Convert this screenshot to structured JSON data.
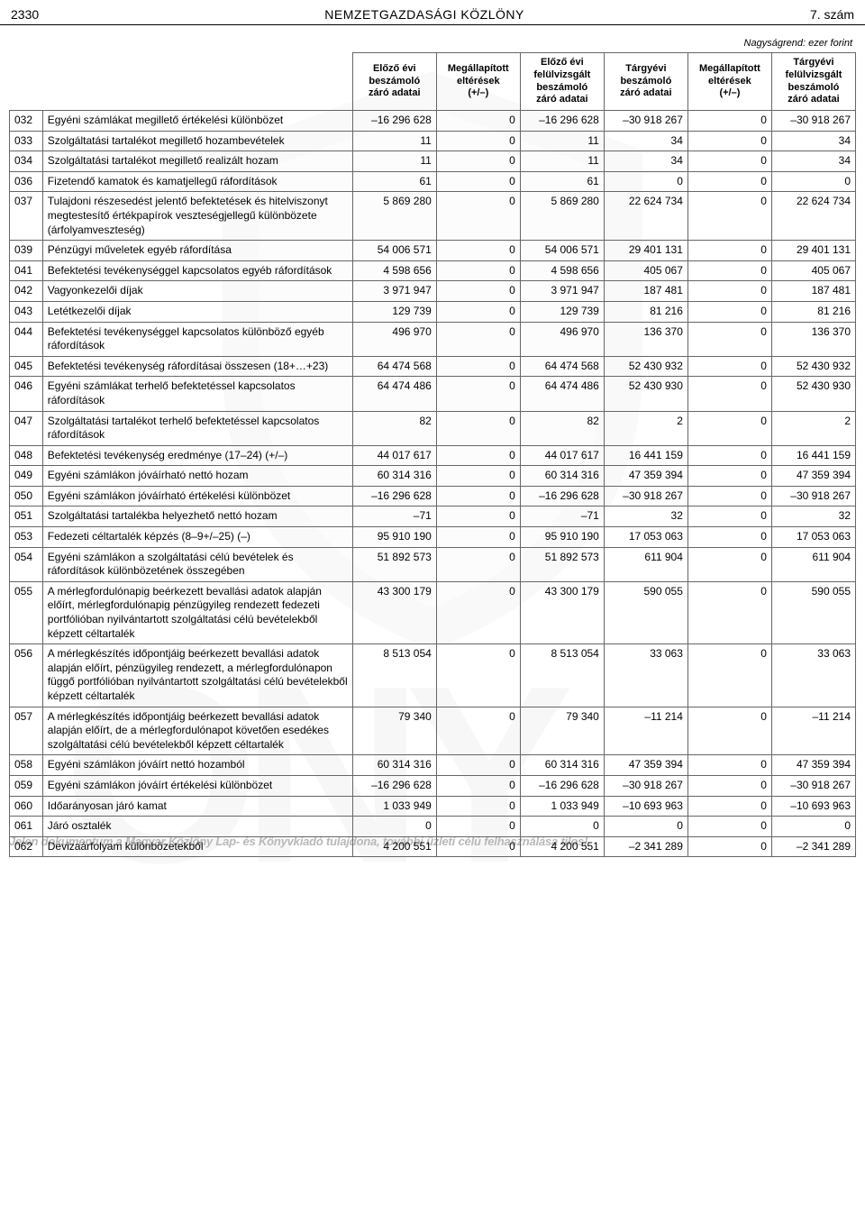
{
  "header": {
    "page_number": "2330",
    "title": "NEMZETGAZDASÁGI KÖZLÖNY",
    "issue": "7. szám"
  },
  "unit_note": "Nagyságrend: ezer forint",
  "columns": [
    "Előző évi\nbeszámoló\nzáró adatai",
    "Megállapított\neltérések\n(+/–)",
    "Előző évi\nfelülvizsgált\nbeszámoló\nzáró adatai",
    "Tárgyévi\nbeszámoló\nzáró adatai",
    "Megállapított\neltérések\n(+/–)",
    "Tárgyévi\nfelülvizsgált\nbeszámoló\nzáró adatai"
  ],
  "rows": [
    {
      "code": "032",
      "desc": "Egyéni számlákat megillető értékelési különbözet",
      "v": [
        "–16 296 628",
        "0",
        "–16 296 628",
        "–30 918 267",
        "0",
        "–30 918 267"
      ]
    },
    {
      "code": "033",
      "desc": "Szolgáltatási tartalékot megillető hozambevételek",
      "v": [
        "11",
        "0",
        "11",
        "34",
        "0",
        "34"
      ]
    },
    {
      "code": "034",
      "desc": "Szolgáltatási tartalékot megillető realizált hozam",
      "v": [
        "11",
        "0",
        "11",
        "34",
        "0",
        "34"
      ]
    },
    {
      "code": "036",
      "desc": "Fizetendő kamatok és kamatjellegű ráfordítások",
      "v": [
        "61",
        "0",
        "61",
        "0",
        "0",
        "0"
      ]
    },
    {
      "code": "037",
      "desc": "Tulajdoni részesedést jelentő befektetések és hitelviszonyt megtestesítő értékpapírok veszteségjellegű különbözete (árfolyamveszteség)",
      "v": [
        "5 869 280",
        "0",
        "5 869 280",
        "22 624 734",
        "0",
        "22 624 734"
      ]
    },
    {
      "code": "039",
      "desc": "Pénzügyi műveletek egyéb ráfordítása",
      "v": [
        "54 006 571",
        "0",
        "54 006 571",
        "29 401 131",
        "0",
        "29 401 131"
      ]
    },
    {
      "code": "041",
      "desc": "Befektetési tevékenységgel kapcsolatos egyéb ráfordítások",
      "v": [
        "4 598 656",
        "0",
        "4 598 656",
        "405 067",
        "0",
        "405 067"
      ]
    },
    {
      "code": "042",
      "desc": "Vagyonkezelői díjak",
      "v": [
        "3 971 947",
        "0",
        "3 971 947",
        "187 481",
        "0",
        "187 481"
      ]
    },
    {
      "code": "043",
      "desc": "Letétkezelői díjak",
      "v": [
        "129 739",
        "0",
        "129 739",
        "81 216",
        "0",
        "81 216"
      ]
    },
    {
      "code": "044",
      "desc": "Befektetési tevékenységgel kapcsolatos különböző egyéb ráfordítások",
      "v": [
        "496 970",
        "0",
        "496 970",
        "136 370",
        "0",
        "136 370"
      ]
    },
    {
      "code": "045",
      "desc": "Befektetési tevékenység ráfordításai összesen (18+…+23)",
      "v": [
        "64 474 568",
        "0",
        "64 474 568",
        "52 430 932",
        "0",
        "52 430 932"
      ]
    },
    {
      "code": "046",
      "desc": "Egyéni számlákat terhelő befektetéssel kapcsolatos ráfordítások",
      "v": [
        "64 474 486",
        "0",
        "64 474 486",
        "52 430 930",
        "0",
        "52 430 930"
      ]
    },
    {
      "code": "047",
      "desc": "Szolgáltatási tartalékot terhelő befektetéssel kapcsolatos ráfordítások",
      "v": [
        "82",
        "0",
        "82",
        "2",
        "0",
        "2"
      ]
    },
    {
      "code": "048",
      "desc": "Befektetési tevékenység eredménye (17–24) (+/–)",
      "v": [
        "44 017 617",
        "0",
        "44 017 617",
        "16 441 159",
        "0",
        "16 441 159"
      ]
    },
    {
      "code": "049",
      "desc": "Egyéni számlákon jóváírható nettó hozam",
      "v": [
        "60 314 316",
        "0",
        "60 314 316",
        "47 359 394",
        "0",
        "47 359 394"
      ]
    },
    {
      "code": "050",
      "desc": "Egyéni számlákon jóváírható értékelési különbözet",
      "v": [
        "–16 296 628",
        "0",
        "–16 296 628",
        "–30 918 267",
        "0",
        "–30 918 267"
      ]
    },
    {
      "code": "051",
      "desc": "Szolgáltatási tartalékba helyezhető nettó hozam",
      "v": [
        "–71",
        "0",
        "–71",
        "32",
        "0",
        "32"
      ]
    },
    {
      "code": "053",
      "desc": "Fedezeti céltartalék képzés (8–9+/–25) (–)",
      "v": [
        "95 910 190",
        "0",
        "95 910 190",
        "17 053 063",
        "0",
        "17 053 063"
      ]
    },
    {
      "code": "054",
      "desc": "Egyéni számlákon a szolgáltatási célú bevételek és ráfordítások különbözetének összegében",
      "v": [
        "51 892 573",
        "0",
        "51 892 573",
        "611 904",
        "0",
        "611 904"
      ]
    },
    {
      "code": "055",
      "desc": "A mérlegfordulónapig beérkezett bevallási adatok alapján előírt, mérlegfordulónapig pénzügyileg rendezett fedezeti portfólióban nyilvántartott szolgáltatási célú bevételekből képzett céltartalék",
      "v": [
        "43 300 179",
        "0",
        "43 300 179",
        "590 055",
        "0",
        "590 055"
      ]
    },
    {
      "code": "056",
      "desc": "A mérlegkészítés időpontjáig beérkezett bevallási adatok alapján előírt, pénzügyileg rendezett, a mérlegfordulónapon függő portfólióban nyilvántartott szolgáltatási célú bevételekből képzett céltartalék",
      "v": [
        "8 513 054",
        "0",
        "8 513 054",
        "33 063",
        "0",
        "33 063"
      ]
    },
    {
      "code": "057",
      "desc": "A mérlegkészítés időpontjáig beérkezett bevallási adatok alapján előírt, de a mérlegfordulónapot követően esedékes szolgáltatási célú bevételekből képzett céltartalék",
      "v": [
        "79 340",
        "0",
        "79 340",
        "–11 214",
        "0",
        "–11 214"
      ]
    },
    {
      "code": "058",
      "desc": "Egyéni számlákon jóváírt nettó hozamból",
      "v": [
        "60 314 316",
        "0",
        "60 314 316",
        "47 359 394",
        "0",
        "47 359 394"
      ]
    },
    {
      "code": "059",
      "desc": "Egyéni számlákon jóváírt értékelési különbözet",
      "v": [
        "–16 296 628",
        "0",
        "–16 296 628",
        "–30 918 267",
        "0",
        "–30 918 267"
      ]
    },
    {
      "code": "060",
      "desc": "Időarányosan járó kamat",
      "v": [
        "1 033 949",
        "0",
        "1 033 949",
        "–10 693 963",
        "0",
        "–10 693 963"
      ]
    },
    {
      "code": "061",
      "desc": "Járó osztalék",
      "v": [
        "0",
        "0",
        "0",
        "0",
        "0",
        "0"
      ]
    },
    {
      "code": "062",
      "desc": "Devizaárfolyam különbözetekből",
      "v": [
        "4 200 551",
        "0",
        "4 200 551",
        "–2 341 289",
        "0",
        "–2 341 289"
      ]
    }
  ],
  "footer": "Jelen dokumentum a Magyar Közlöny Lap- és Könyvkiadó tulajdona, további üzleti célú felhasználása tilos!",
  "watermark_big": "ÖNY"
}
